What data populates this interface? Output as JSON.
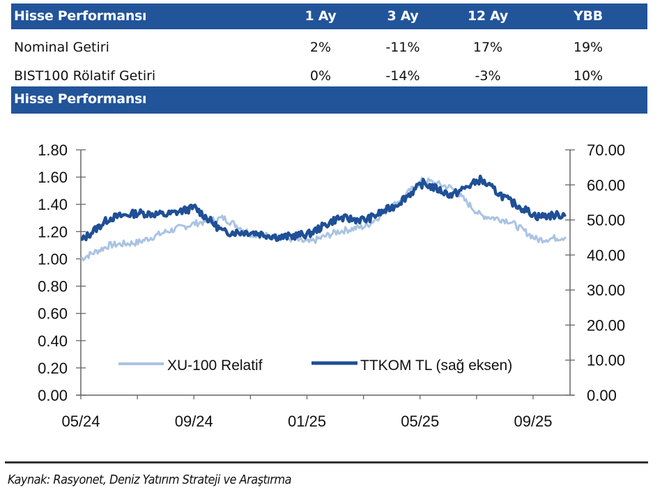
{
  "table": {
    "title": "Hisse Performansı",
    "columns": [
      "1 Ay",
      "3 Ay",
      "12 Ay",
      "YBB"
    ],
    "rows": [
      {
        "label": "Nominal Getiri",
        "values": [
          "2%",
          "-11%",
          "17%",
          "19%"
        ]
      },
      {
        "label": "BIST100 Rölatif Getiri",
        "values": [
          "0%",
          "-14%",
          "-3%",
          "10%"
        ]
      }
    ]
  },
  "chart_header": "Hisse Performansı",
  "colors": {
    "header_bg": "#22549a",
    "series_dark": "#1f4f96",
    "series_light": "#a9c3e3"
  },
  "chart_data": {
    "type": "line",
    "title": "",
    "xlabel": "",
    "ylabel": "",
    "x_ticks": [
      "05/24",
      "09/24",
      "01/25",
      "05/25",
      "09/25"
    ],
    "x_range": [
      "2024-05",
      "2025-10"
    ],
    "left_axis": {
      "ylim": [
        0,
        1.8
      ],
      "ticks": [
        "0.00",
        "0.20",
        "0.40",
        "0.60",
        "0.80",
        "1.00",
        "1.20",
        "1.40",
        "1.60",
        "1.80"
      ]
    },
    "right_axis": {
      "ylim": [
        0,
        70
      ],
      "ticks": [
        "0.00",
        "10.00",
        "20.00",
        "30.00",
        "40.00",
        "50.00",
        "60.00",
        "70.00"
      ]
    },
    "grid": false,
    "legend": {
      "placement": "bottom-center",
      "entries": [
        "XU-100 Relatif",
        "TTKOM TL (sağ eksen)"
      ]
    },
    "x": [
      "2024-05",
      "2024-06",
      "2024-07",
      "2024-08",
      "2024-09",
      "2024-10",
      "2024-11",
      "2024-12",
      "2025-01",
      "2025-02",
      "2025-03",
      "2025-04",
      "2025-05",
      "2025-06",
      "2025-07",
      "2025-08",
      "2025-09",
      "2025-10"
    ],
    "series": [
      {
        "name": "XU-100 Relatif",
        "axis": "left",
        "values": [
          1.0,
          1.1,
          1.12,
          1.2,
          1.26,
          1.3,
          1.18,
          1.16,
          1.12,
          1.2,
          1.24,
          1.4,
          1.58,
          1.52,
          1.32,
          1.28,
          1.14,
          1.16
        ]
      },
      {
        "name": "TTKOM TL (sağ eksen)",
        "axis": "right",
        "values": [
          44.0,
          50.5,
          52.0,
          51.5,
          53.5,
          46.5,
          46.5,
          45.0,
          46.0,
          50.5,
          50.0,
          54.0,
          60.5,
          57.0,
          61.5,
          55.5,
          51.0,
          51.5
        ]
      }
    ]
  },
  "source": "Kaynak: Rasyonet, Deniz Yatırım Strateji ve Araştırma"
}
